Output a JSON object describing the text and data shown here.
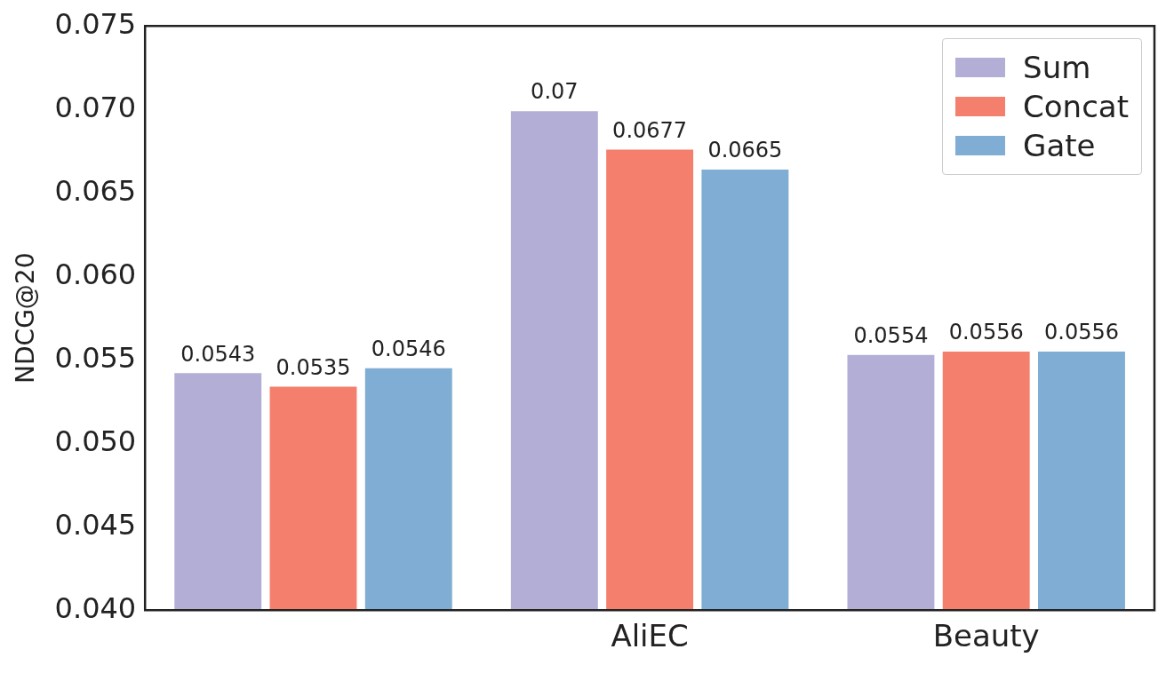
{
  "chart_data": {
    "type": "bar",
    "ylabel": "NDCG@20",
    "categories": [
      null,
      "AliEC",
      "Beauty"
    ],
    "series": [
      {
        "name": "Sum",
        "color": "#b3aed6",
        "values": [
          0.0543,
          0.07,
          0.0554
        ]
      },
      {
        "name": "Concat",
        "color": "#f47f6d",
        "values": [
          0.0535,
          0.0677,
          0.0556
        ]
      },
      {
        "name": "Gate",
        "color": "#7fadd4",
        "values": [
          0.0546,
          0.0665,
          0.0556
        ]
      }
    ],
    "ylim": [
      0.04,
      0.075
    ],
    "yticks": [
      {
        "value": 0.04,
        "label": "0.040"
      },
      {
        "value": 0.045,
        "label": "0.045"
      },
      {
        "value": 0.05,
        "label": "0.050"
      },
      {
        "value": 0.055,
        "label": "0.055"
      },
      {
        "value": 0.06,
        "label": "0.060"
      },
      {
        "value": 0.065,
        "label": "0.065"
      },
      {
        "value": 0.07,
        "label": "0.070"
      },
      {
        "value": 0.075,
        "label": "0.075"
      }
    ],
    "data_labels": true,
    "legend": "top right",
    "grid": false
  }
}
